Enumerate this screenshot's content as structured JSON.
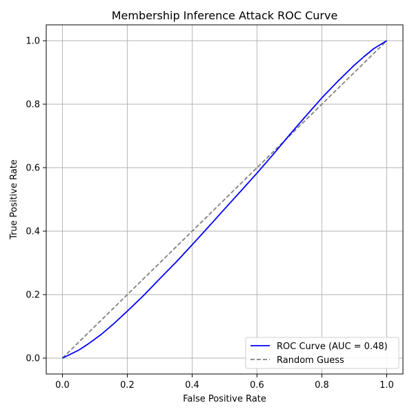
{
  "chart_data": {
    "type": "line",
    "title": "Membership Inference Attack ROC Curve",
    "xlabel": "False Positive Rate",
    "ylabel": "True Positive Rate",
    "xlim": [
      -0.05,
      1.05
    ],
    "ylim": [
      -0.05,
      1.05
    ],
    "xticks": [
      0.0,
      0.2,
      0.4,
      0.6,
      0.8,
      1.0
    ],
    "yticks": [
      0.0,
      0.2,
      0.4,
      0.6,
      0.8,
      1.0
    ],
    "xtick_labels": [
      "0.0",
      "0.2",
      "0.4",
      "0.6",
      "0.8",
      "1.0"
    ],
    "ytick_labels": [
      "0.0",
      "0.2",
      "0.4",
      "0.6",
      "0.8",
      "1.0"
    ],
    "grid": true,
    "legend_position": "lower-right",
    "series": [
      {
        "name": "ROC Curve (AUC = 0.48)",
        "style": "solid",
        "color": "#0000ff",
        "x": [
          0.0,
          0.02,
          0.05,
          0.08,
          0.12,
          0.16,
          0.2,
          0.25,
          0.3,
          0.35,
          0.4,
          0.45,
          0.5,
          0.55,
          0.6,
          0.65,
          0.7,
          0.75,
          0.8,
          0.85,
          0.9,
          0.93,
          0.96,
          1.0
        ],
        "y": [
          0.0,
          0.01,
          0.025,
          0.045,
          0.075,
          0.11,
          0.148,
          0.197,
          0.25,
          0.302,
          0.357,
          0.413,
          0.47,
          0.526,
          0.583,
          0.642,
          0.703,
          0.762,
          0.82,
          0.873,
          0.923,
          0.95,
          0.975,
          1.0
        ]
      },
      {
        "name": "Random Guess",
        "style": "dashed",
        "color": "#808080",
        "x": [
          0.0,
          1.0
        ],
        "y": [
          0.0,
          1.0
        ]
      }
    ]
  }
}
